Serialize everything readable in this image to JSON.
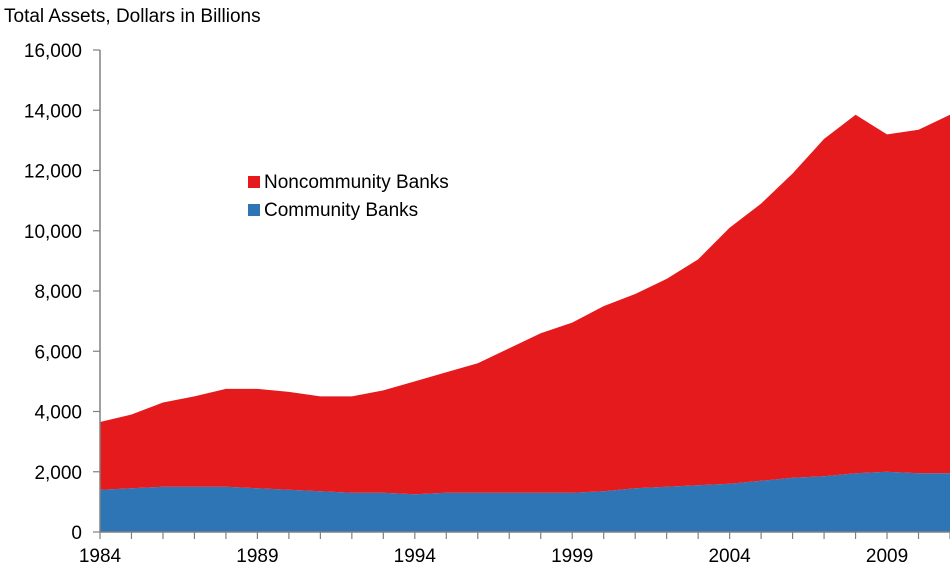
{
  "chart_data": {
    "type": "area",
    "stacked": true,
    "title": "Total Assets, Dollars in Billions",
    "xlabel": "",
    "ylabel": "",
    "x": [
      1984,
      1985,
      1986,
      1987,
      1988,
      1989,
      1990,
      1991,
      1992,
      1993,
      1994,
      1995,
      1996,
      1997,
      1998,
      1999,
      2000,
      2001,
      2002,
      2003,
      2004,
      2005,
      2006,
      2007,
      2008,
      2009,
      2010,
      2011
    ],
    "xticks": [
      "1984",
      "1989",
      "1994",
      "1999",
      "2004",
      "2009"
    ],
    "xlim": [
      1984,
      2011
    ],
    "ylim": [
      0,
      16000
    ],
    "yticks": [
      0,
      2000,
      4000,
      6000,
      8000,
      10000,
      12000,
      14000,
      16000
    ],
    "ytick_labels": [
      "0",
      "2,000",
      "4,000",
      "6,000",
      "8,000",
      "10,000",
      "12,000",
      "14,000",
      "16,000"
    ],
    "grid": false,
    "legend_position": "upper-left-center",
    "series": [
      {
        "name": "Noncommunity Banks",
        "color": "#e41a1c",
        "values": [
          2250,
          2450,
          2800,
          3000,
          3250,
          3300,
          3250,
          3150,
          3200,
          3400,
          3750,
          4000,
          4300,
          4800,
          5300,
          5650,
          6150,
          6450,
          6900,
          7500,
          8500,
          9200,
          10100,
          11200,
          11900,
          11200,
          11400,
          11900
        ]
      },
      {
        "name": "Community Banks",
        "color": "#2e75b6",
        "values": [
          1400,
          1450,
          1500,
          1500,
          1500,
          1450,
          1400,
          1350,
          1300,
          1300,
          1250,
          1300,
          1300,
          1300,
          1300,
          1300,
          1350,
          1450,
          1500,
          1550,
          1600,
          1700,
          1800,
          1850,
          1950,
          2000,
          1950,
          1950
        ]
      }
    ]
  }
}
